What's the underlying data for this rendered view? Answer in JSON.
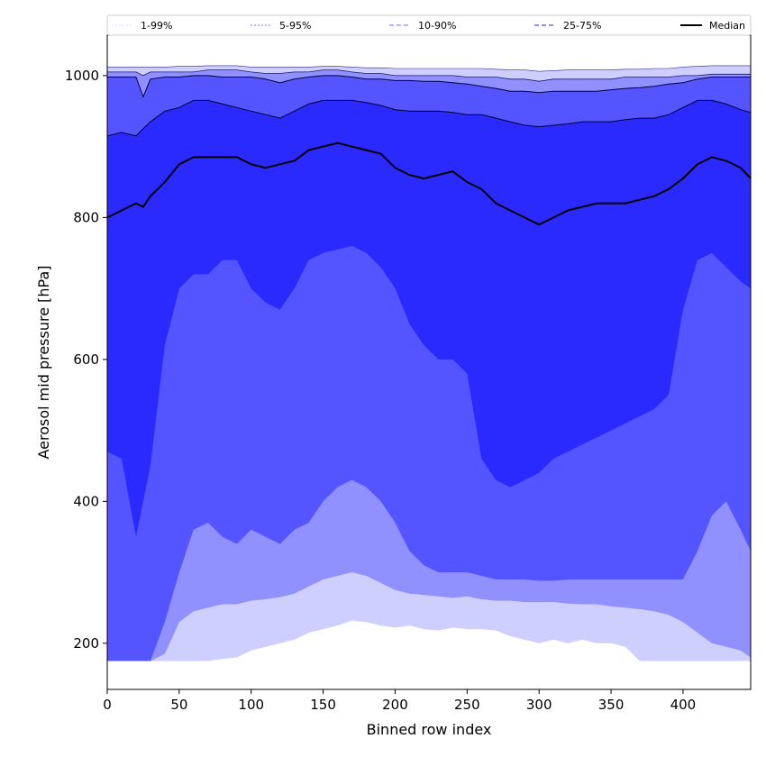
{
  "chart_data": {
    "type": "area",
    "xlabel": "Binned row index",
    "ylabel": "Aerosol mid pressure [hPa]",
    "xlim": [
      0,
      447
    ],
    "ylim": [
      135,
      1057
    ],
    "x_ticks": [
      0,
      50,
      100,
      150,
      200,
      250,
      300,
      350,
      400
    ],
    "y_ticks": [
      200,
      400,
      600,
      800,
      1000
    ],
    "grid": false,
    "legend_position": "top (above plot area)",
    "legend": [
      {
        "label": "1-99%",
        "style": "dotted",
        "color": "#e6e6ff"
      },
      {
        "label": "5-95%",
        "style": "dotted",
        "color": "#a8a8ff"
      },
      {
        "label": "10-90%",
        "style": "dashed",
        "color": "#9a9aff"
      },
      {
        "label": "25-75%",
        "style": "dashed",
        "color": "#6a6aff"
      },
      {
        "label": "Median",
        "style": "solid",
        "color": "#000000"
      }
    ],
    "colors": {
      "band_1_99": "#cfcfff",
      "band_5_95": "#9090ff",
      "band_10_90": "#5555ff",
      "band_25_75": "#2a2aff",
      "median": "#000000"
    },
    "x": [
      0,
      10,
      20,
      25,
      30,
      40,
      50,
      60,
      70,
      80,
      90,
      100,
      110,
      120,
      130,
      140,
      150,
      160,
      170,
      180,
      190,
      200,
      210,
      220,
      230,
      240,
      250,
      260,
      270,
      280,
      290,
      300,
      310,
      320,
      330,
      340,
      350,
      360,
      370,
      380,
      390,
      400,
      410,
      420,
      430,
      440,
      447
    ],
    "series": [
      {
        "name": "1%",
        "values": [
          175,
          175,
          175,
          175,
          175,
          175,
          175,
          175,
          175,
          178,
          180,
          190,
          195,
          200,
          205,
          215,
          220,
          225,
          232,
          230,
          225,
          222,
          225,
          220,
          218,
          222,
          220,
          220,
          218,
          210,
          205,
          200,
          205,
          200,
          205,
          200,
          200,
          195,
          175,
          175,
          175,
          175,
          175,
          175,
          175,
          175,
          175
        ]
      },
      {
        "name": "5%",
        "values": [
          175,
          175,
          175,
          175,
          175,
          185,
          230,
          245,
          250,
          255,
          255,
          260,
          262,
          265,
          270,
          280,
          290,
          295,
          300,
          295,
          285,
          275,
          270,
          268,
          266,
          264,
          266,
          262,
          260,
          260,
          258,
          258,
          258,
          256,
          255,
          255,
          252,
          250,
          248,
          245,
          240,
          230,
          215,
          200,
          195,
          190,
          180
        ]
      },
      {
        "name": "10%",
        "values": [
          175,
          175,
          175,
          175,
          175,
          230,
          300,
          360,
          370,
          350,
          340,
          360,
          350,
          340,
          360,
          370,
          400,
          420,
          430,
          420,
          400,
          370,
          330,
          310,
          300,
          300,
          300,
          295,
          290,
          290,
          290,
          288,
          288,
          290,
          290,
          290,
          290,
          290,
          290,
          290,
          290,
          290,
          330,
          380,
          400,
          360,
          330
        ]
      },
      {
        "name": "25%",
        "values": [
          470,
          460,
          350,
          400,
          450,
          620,
          700,
          720,
          720,
          740,
          740,
          700,
          680,
          670,
          700,
          740,
          750,
          755,
          760,
          750,
          730,
          700,
          650,
          620,
          600,
          600,
          580,
          460,
          430,
          420,
          430,
          440,
          460,
          470,
          480,
          490,
          500,
          510,
          520,
          530,
          550,
          670,
          740,
          750,
          730,
          710,
          700
        ]
      },
      {
        "name": "Median",
        "values": [
          800,
          810,
          820,
          815,
          830,
          850,
          875,
          885,
          885,
          885,
          885,
          875,
          870,
          875,
          880,
          895,
          900,
          905,
          900,
          895,
          890,
          870,
          860,
          855,
          860,
          865,
          850,
          840,
          820,
          810,
          800,
          790,
          800,
          810,
          815,
          820,
          820,
          820,
          825,
          830,
          840,
          855,
          875,
          885,
          880,
          870,
          855
        ]
      },
      {
        "name": "75%",
        "values": [
          915,
          920,
          915,
          925,
          935,
          950,
          955,
          965,
          965,
          960,
          955,
          950,
          945,
          940,
          950,
          960,
          965,
          965,
          965,
          962,
          958,
          952,
          950,
          950,
          950,
          948,
          945,
          945,
          940,
          935,
          930,
          928,
          930,
          932,
          935,
          935,
          935,
          938,
          940,
          940,
          945,
          955,
          965,
          965,
          960,
          952,
          948
        ]
      },
      {
        "name": "90%",
        "values": [
          998,
          998,
          998,
          970,
          995,
          998,
          998,
          1000,
          1000,
          998,
          998,
          998,
          995,
          990,
          995,
          998,
          1000,
          1000,
          998,
          995,
          995,
          993,
          993,
          992,
          992,
          990,
          988,
          985,
          982,
          978,
          978,
          976,
          978,
          978,
          978,
          978,
          980,
          982,
          983,
          985,
          988,
          990,
          995,
          998,
          998,
          998,
          998
        ]
      },
      {
        "name": "95%",
        "values": [
          1005,
          1005,
          1005,
          1000,
          1005,
          1005,
          1005,
          1005,
          1008,
          1008,
          1008,
          1005,
          1003,
          1003,
          1005,
          1005,
          1008,
          1008,
          1005,
          1003,
          1003,
          1000,
          1000,
          1000,
          1000,
          1000,
          998,
          998,
          998,
          995,
          995,
          992,
          995,
          995,
          995,
          995,
          995,
          998,
          998,
          998,
          998,
          1000,
          1000,
          1002,
          1002,
          1002,
          1002
        ]
      },
      {
        "name": "99%",
        "values": [
          1012,
          1012,
          1012,
          1012,
          1012,
          1012,
          1013,
          1013,
          1014,
          1014,
          1014,
          1012,
          1012,
          1012,
          1012,
          1012,
          1013,
          1013,
          1012,
          1011,
          1011,
          1010,
          1010,
          1010,
          1010,
          1010,
          1010,
          1010,
          1009,
          1008,
          1008,
          1006,
          1007,
          1008,
          1008,
          1008,
          1008,
          1009,
          1009,
          1010,
          1010,
          1012,
          1013,
          1014,
          1014,
          1014,
          1014
        ]
      }
    ]
  }
}
